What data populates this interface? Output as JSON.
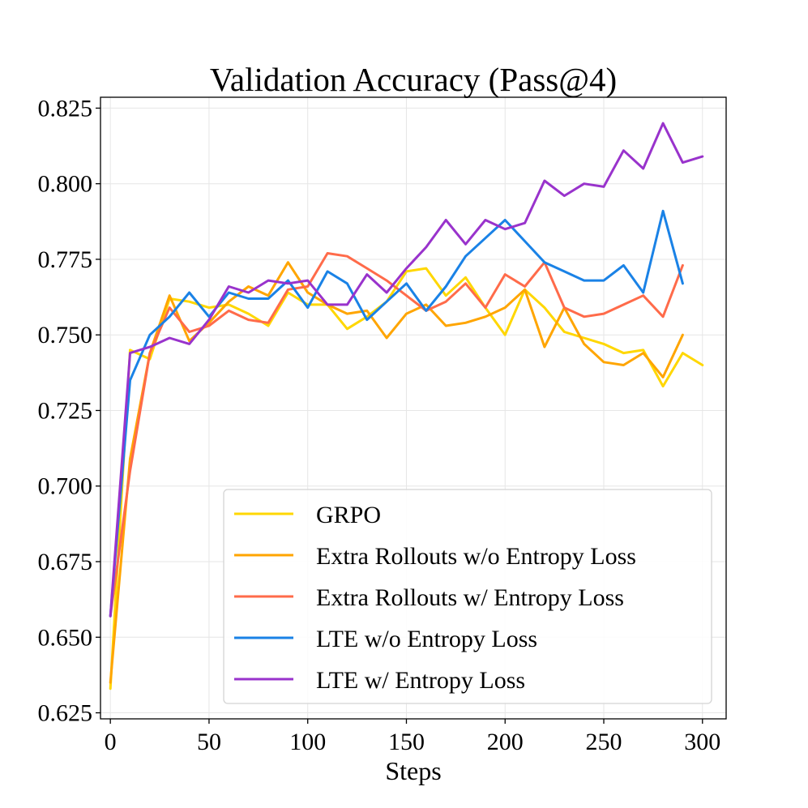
{
  "chart_data": {
    "type": "line",
    "title": "Validation Accuracy (Pass@4)",
    "xlabel": "Steps",
    "ylabel": "",
    "xlim": [
      -5,
      312
    ],
    "ylim": [
      0.623,
      0.8286
    ],
    "xticks": [
      0,
      50,
      100,
      150,
      200,
      250,
      300
    ],
    "xtick_labels": [
      "0",
      "50",
      "100",
      "150",
      "200",
      "250",
      "300"
    ],
    "yticks": [
      0.625,
      0.65,
      0.675,
      0.7,
      0.725,
      0.75,
      0.775,
      0.8,
      0.825
    ],
    "ytick_labels": [
      "0.625",
      "0.650",
      "0.675",
      "0.700",
      "0.725",
      "0.750",
      "0.775",
      "0.800",
      "0.825"
    ],
    "grid": true,
    "legend_position": "lower-right",
    "series": [
      {
        "name": "GRPO",
        "color": "#FFD700",
        "x": [
          0,
          10,
          20,
          30,
          40,
          50,
          60,
          70,
          80,
          90,
          100,
          110,
          120,
          130,
          140,
          150,
          160,
          170,
          180,
          190,
          200,
          210,
          220,
          230,
          240,
          250,
          260,
          270,
          280,
          290,
          300
        ],
        "values": [
          0.633,
          0.745,
          0.742,
          0.762,
          0.761,
          0.759,
          0.76,
          0.757,
          0.753,
          0.764,
          0.76,
          0.76,
          0.752,
          0.756,
          0.761,
          0.771,
          0.772,
          0.763,
          0.769,
          0.759,
          0.75,
          0.765,
          0.759,
          0.751,
          0.749,
          0.747,
          0.744,
          0.745,
          0.733,
          0.744,
          0.74
        ]
      },
      {
        "name": "Extra Rollouts w/o Entropy Loss",
        "color": "#FFA500",
        "x": [
          0,
          10,
          20,
          30,
          40,
          50,
          60,
          70,
          80,
          90,
          100,
          110,
          120,
          130,
          140,
          150,
          160,
          170,
          180,
          190,
          200,
          210,
          220,
          230,
          240,
          250,
          260,
          270,
          280,
          290
        ],
        "values": [
          0.635,
          0.709,
          0.744,
          0.763,
          0.748,
          0.754,
          0.761,
          0.766,
          0.763,
          0.774,
          0.764,
          0.76,
          0.757,
          0.758,
          0.749,
          0.757,
          0.76,
          0.753,
          0.754,
          0.756,
          0.759,
          0.765,
          0.746,
          0.759,
          0.747,
          0.741,
          0.74,
          0.744,
          0.736,
          0.75
        ]
      },
      {
        "name": "Extra Rollouts w/ Entropy Loss",
        "color": "#FF6B4A",
        "x": [
          0,
          10,
          20,
          30,
          40,
          50,
          60,
          70,
          80,
          90,
          100,
          110,
          120,
          130,
          140,
          150,
          160,
          170,
          180,
          190,
          200,
          210,
          220,
          230,
          240,
          250,
          260,
          270,
          280,
          290
        ],
        "values": [
          0.657,
          0.705,
          0.744,
          0.759,
          0.751,
          0.753,
          0.758,
          0.755,
          0.754,
          0.765,
          0.766,
          0.777,
          0.776,
          0.772,
          0.768,
          0.763,
          0.758,
          0.761,
          0.767,
          0.759,
          0.77,
          0.766,
          0.774,
          0.759,
          0.756,
          0.757,
          0.76,
          0.763,
          0.756,
          0.773
        ]
      },
      {
        "name": "LTE w/o Entropy Loss",
        "color": "#1A82E6",
        "x": [
          0,
          10,
          20,
          30,
          40,
          50,
          60,
          70,
          80,
          90,
          100,
          110,
          120,
          130,
          140,
          150,
          160,
          170,
          180,
          190,
          200,
          210,
          220,
          230,
          240,
          250,
          260,
          270,
          280,
          290
        ],
        "values": [
          0.657,
          0.735,
          0.75,
          0.756,
          0.764,
          0.756,
          0.764,
          0.762,
          0.762,
          0.768,
          0.759,
          0.771,
          0.767,
          0.755,
          0.761,
          0.767,
          0.758,
          0.766,
          0.776,
          0.782,
          0.788,
          0.781,
          0.774,
          0.771,
          0.768,
          0.768,
          0.773,
          0.764,
          0.791,
          0.767
        ]
      },
      {
        "name": "LTE w/ Entropy Loss",
        "color": "#9933CC",
        "x": [
          0,
          10,
          20,
          30,
          40,
          50,
          60,
          70,
          80,
          90,
          100,
          110,
          120,
          130,
          140,
          150,
          160,
          170,
          180,
          190,
          200,
          210,
          220,
          230,
          240,
          250,
          260,
          270,
          280,
          290,
          300
        ],
        "values": [
          0.657,
          0.744,
          0.746,
          0.749,
          0.747,
          0.755,
          0.766,
          0.764,
          0.768,
          0.767,
          0.768,
          0.76,
          0.76,
          0.77,
          0.764,
          0.772,
          0.779,
          0.788,
          0.78,
          0.788,
          0.785,
          0.787,
          0.801,
          0.796,
          0.8,
          0.799,
          0.811,
          0.805,
          0.82,
          0.807,
          0.809
        ]
      }
    ]
  }
}
